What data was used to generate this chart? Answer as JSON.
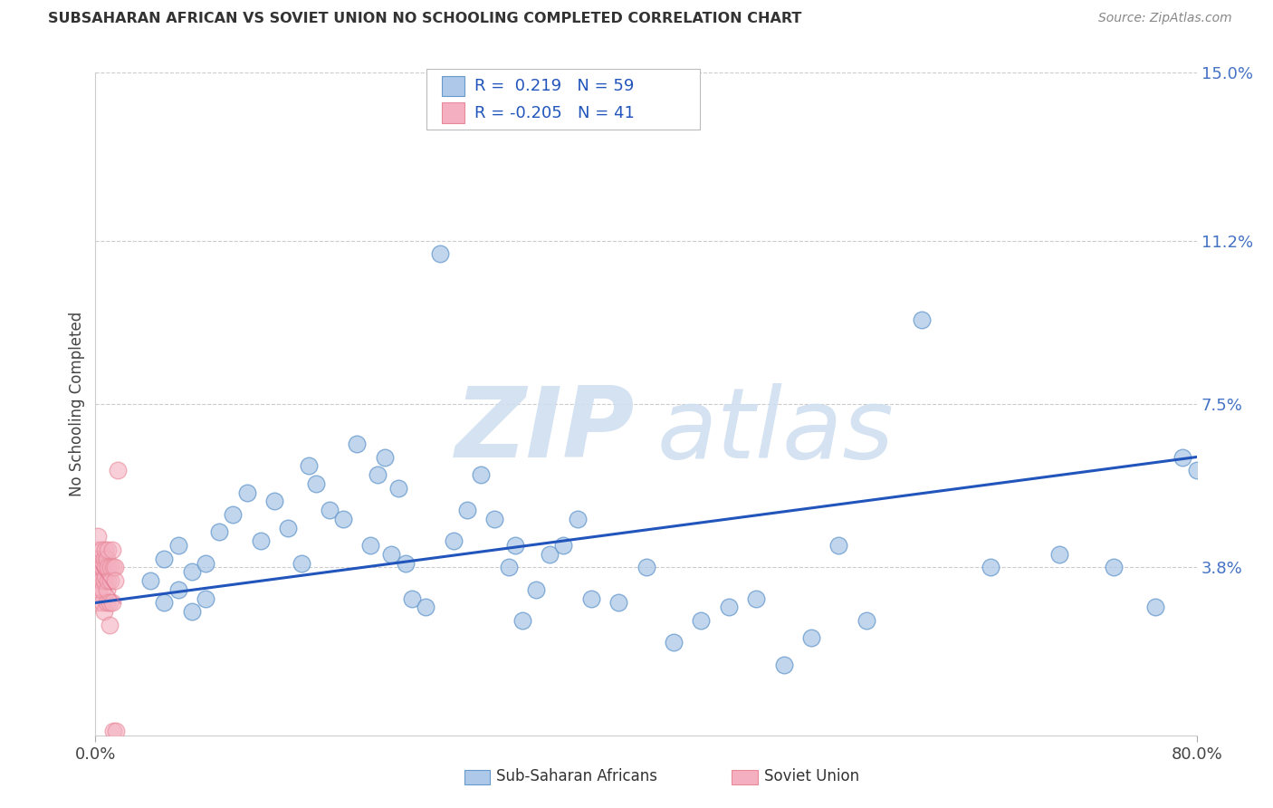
{
  "title": "SUBSAHARAN AFRICAN VS SOVIET UNION NO SCHOOLING COMPLETED CORRELATION CHART",
  "source": "Source: ZipAtlas.com",
  "ylabel": "No Schooling Completed",
  "xlim": [
    0.0,
    0.8
  ],
  "ylim": [
    0.0,
    0.15
  ],
  "ytick_values": [
    0.038,
    0.075,
    0.112,
    0.15
  ],
  "ytick_labels": [
    "3.8%",
    "7.5%",
    "11.2%",
    "15.0%"
  ],
  "blue_face": "#adc8e8",
  "blue_edge": "#6699cc",
  "pink_face": "#f4b0c0",
  "pink_edge": "#e88898",
  "trend_blue": "#2255bb",
  "trend_pink": "#dd6688",
  "blue_x": [
    0.04,
    0.05,
    0.05,
    0.06,
    0.06,
    0.07,
    0.07,
    0.08,
    0.08,
    0.09,
    0.1,
    0.11,
    0.12,
    0.13,
    0.14,
    0.15,
    0.155,
    0.16,
    0.17,
    0.18,
    0.19,
    0.2,
    0.205,
    0.21,
    0.215,
    0.22,
    0.225,
    0.23,
    0.24,
    0.25,
    0.26,
    0.27,
    0.28,
    0.29,
    0.3,
    0.305,
    0.31,
    0.32,
    0.33,
    0.34,
    0.35,
    0.36,
    0.38,
    0.4,
    0.42,
    0.44,
    0.46,
    0.48,
    0.5,
    0.52,
    0.54,
    0.56,
    0.6,
    0.65,
    0.7,
    0.74,
    0.77,
    0.79,
    0.8
  ],
  "blue_y": [
    0.035,
    0.03,
    0.04,
    0.033,
    0.043,
    0.028,
    0.037,
    0.031,
    0.039,
    0.046,
    0.05,
    0.055,
    0.044,
    0.053,
    0.047,
    0.039,
    0.061,
    0.057,
    0.051,
    0.049,
    0.066,
    0.043,
    0.059,
    0.063,
    0.041,
    0.056,
    0.039,
    0.031,
    0.029,
    0.109,
    0.044,
    0.051,
    0.059,
    0.049,
    0.038,
    0.043,
    0.026,
    0.033,
    0.041,
    0.043,
    0.049,
    0.031,
    0.03,
    0.038,
    0.021,
    0.026,
    0.029,
    0.031,
    0.016,
    0.022,
    0.043,
    0.026,
    0.094,
    0.038,
    0.041,
    0.038,
    0.029,
    0.063,
    0.06
  ],
  "pink_x": [
    0.0,
    0.0,
    0.001,
    0.001,
    0.001,
    0.002,
    0.002,
    0.002,
    0.003,
    0.003,
    0.003,
    0.004,
    0.004,
    0.004,
    0.005,
    0.005,
    0.005,
    0.006,
    0.006,
    0.006,
    0.007,
    0.007,
    0.007,
    0.008,
    0.008,
    0.008,
    0.009,
    0.009,
    0.009,
    0.01,
    0.01,
    0.011,
    0.011,
    0.012,
    0.012,
    0.013,
    0.013,
    0.014,
    0.014,
    0.015,
    0.016
  ],
  "pink_y": [
    0.038,
    0.04,
    0.035,
    0.042,
    0.03,
    0.038,
    0.033,
    0.045,
    0.032,
    0.036,
    0.04,
    0.038,
    0.035,
    0.042,
    0.03,
    0.033,
    0.038,
    0.035,
    0.04,
    0.028,
    0.042,
    0.036,
    0.038,
    0.03,
    0.033,
    0.04,
    0.035,
    0.038,
    0.042,
    0.03,
    0.025,
    0.038,
    0.035,
    0.042,
    0.03,
    0.038,
    0.001,
    0.038,
    0.035,
    0.001,
    0.06
  ],
  "trend_blue_x0": 0.0,
  "trend_blue_x1": 0.8,
  "trend_blue_y0": 0.03,
  "trend_blue_y1": 0.063,
  "watermark_zip_color": "#d0dff0",
  "watermark_atlas_color": "#d0dff0"
}
